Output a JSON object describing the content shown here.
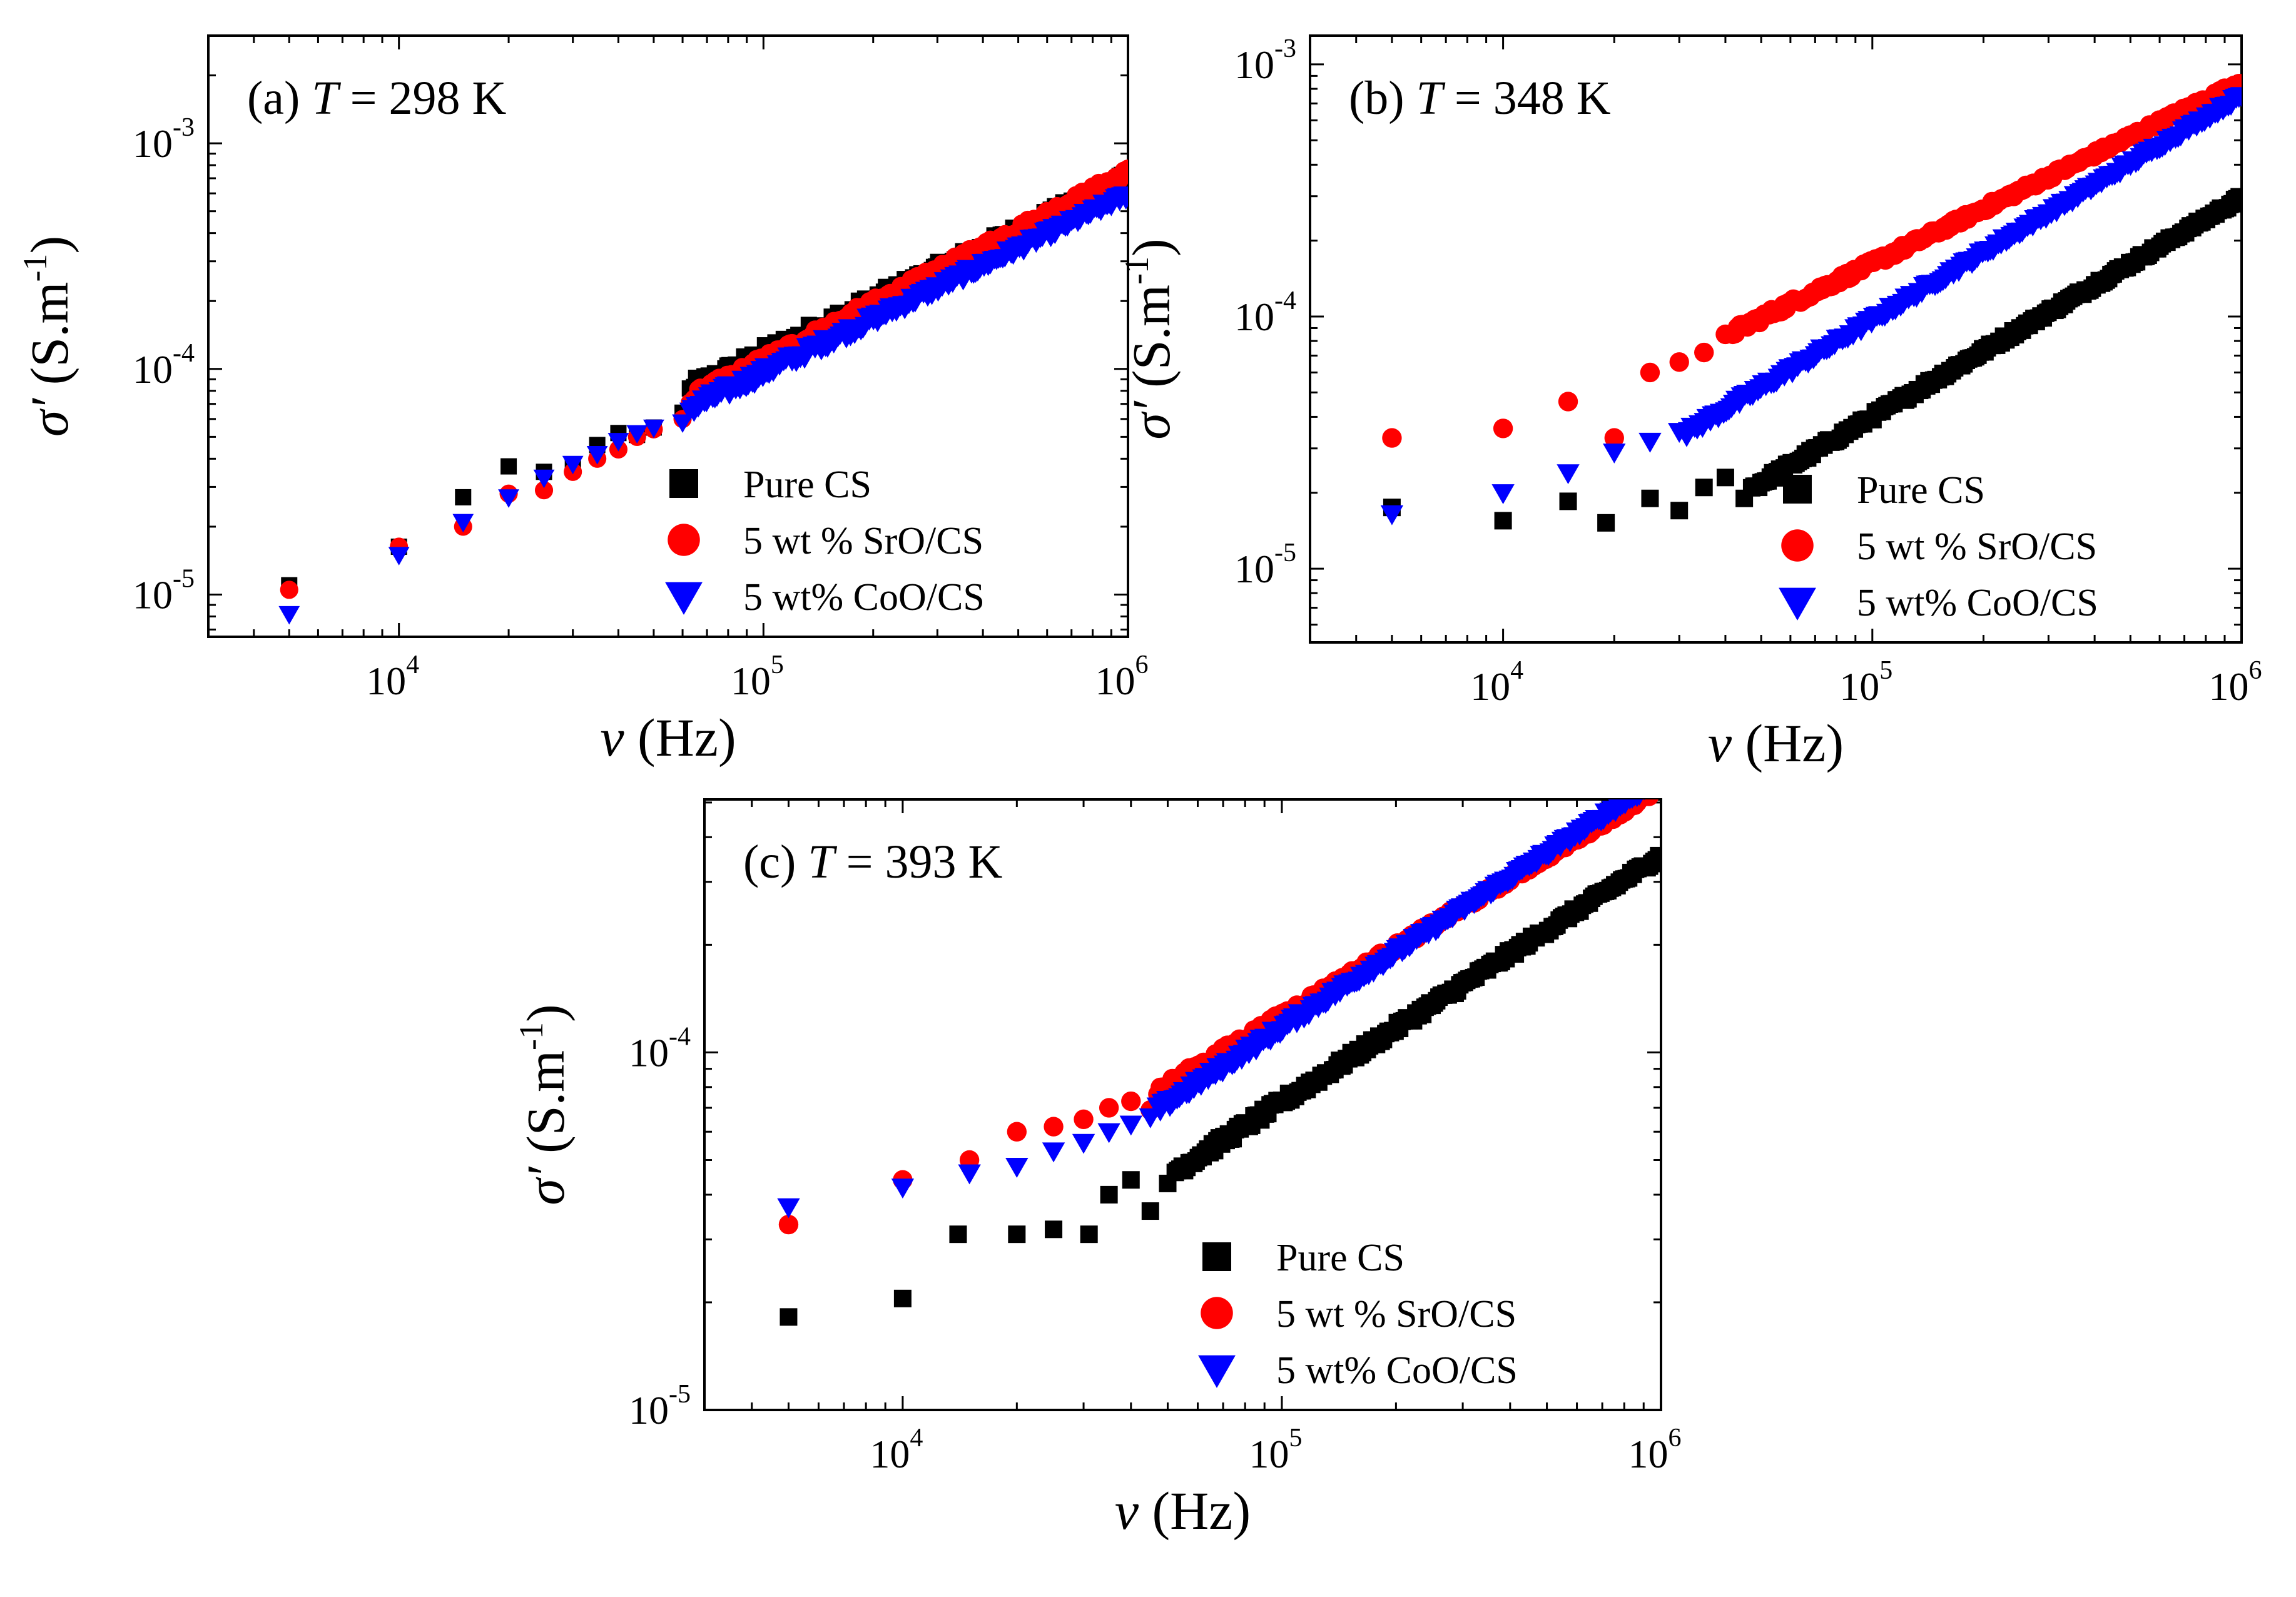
{
  "figure": {
    "legend": {
      "pure_cs": "Pure CS",
      "sro": "5 wt % SrO/CS",
      "coo": "5 wt% CoO/CS"
    },
    "colors": {
      "pure_cs": "#000000",
      "sro": "#ff0000",
      "coo": "#0000ff"
    }
  },
  "chart_data": [
    {
      "type": "scatter",
      "panel": "a",
      "title_prefix": "(a) ",
      "title_var": "T",
      "title_suffix": " = 298 K",
      "xlabel_var": "ν",
      "xlabel_unit": "(Hz)",
      "ylabel_sym": "σ′",
      "ylabel_unit_a": "(S.m",
      "ylabel_unit_exp": "-1",
      "ylabel_unit_b": ")",
      "xscale": "log",
      "yscale": "log",
      "xlim": [
        3000,
        1000000
      ],
      "ylim": [
        6.5e-06,
        0.003
      ],
      "xticks": [
        {
          "base": "10",
          "exp": "4",
          "value": 10000
        },
        {
          "base": "10",
          "exp": "5",
          "value": 100000
        },
        {
          "base": "10",
          "exp": "6",
          "value": 1000000
        }
      ],
      "yticks": [
        {
          "base": "10",
          "exp": "-5",
          "value": 1e-05
        },
        {
          "base": "10",
          "exp": "-4",
          "value": 0.0001
        },
        {
          "base": "10",
          "exp": "-3",
          "value": 0.001
        }
      ],
      "legend_position": "bottom-right",
      "series": [
        {
          "name": "Pure CS",
          "marker": "square",
          "fit": {
            "f0": 20000,
            "s0": 3.2e-05,
            "n": 0.79,
            "drift": 0.2
          },
          "points": [
            [
              5000,
              1.1e-05
            ],
            [
              10000,
              1.63e-05
            ],
            [
              15000,
              2.7e-05
            ],
            [
              20000,
              3.7e-05
            ],
            [
              25000,
              3.5e-05
            ],
            [
              30000,
              3.7e-05
            ],
            [
              35000,
              4.6e-05
            ],
            [
              40000,
              5.2e-05
            ],
            [
              45000,
              5.1e-05
            ],
            [
              50000,
              5.5e-05
            ],
            [
              60000,
              6.4e-05
            ]
          ]
        },
        {
          "name": "5 wt % SrO/CS",
          "marker": "circle",
          "fit": {
            "f0": 20000,
            "s0": 2.8e-05,
            "n": 0.84,
            "drift": 0.12
          },
          "points": [
            [
              5000,
              1.05e-05
            ],
            [
              10000,
              1.63e-05
            ],
            [
              15000,
              2e-05
            ],
            [
              20000,
              2.8e-05
            ],
            [
              25000,
              2.9e-05
            ],
            [
              30000,
              3.5e-05
            ],
            [
              35000,
              4e-05
            ],
            [
              40000,
              4.4e-05
            ],
            [
              45000,
              5e-05
            ],
            [
              50000,
              5.4e-05
            ],
            [
              60000,
              6e-05
            ]
          ]
        },
        {
          "name": "5 wt% CoO/CS",
          "marker": "triangle",
          "fit": {
            "f0": 20000,
            "s0": 2.7e-05,
            "n": 0.79,
            "drift": 0.12
          },
          "points": [
            [
              5000,
              8.2e-06
            ],
            [
              10000,
              1.5e-05
            ],
            [
              15000,
              2.1e-05
            ],
            [
              20000,
              2.7e-05
            ],
            [
              25000,
              3.3e-05
            ],
            [
              30000,
              3.8e-05
            ],
            [
              35000,
              4.2e-05
            ],
            [
              40000,
              4.8e-05
            ],
            [
              45000,
              5.2e-05
            ],
            [
              50000,
              5.5e-05
            ],
            [
              60000,
              5.8e-05
            ]
          ]
        }
      ]
    },
    {
      "type": "scatter",
      "panel": "b",
      "title_prefix": "(b) ",
      "title_var": "T",
      "title_suffix": " = 348 K",
      "xlabel_var": "ν",
      "xlabel_unit": "(Hz)",
      "ylabel_sym": "σ′",
      "ylabel_unit_a": "(S.m",
      "ylabel_unit_exp": "-1",
      "ylabel_unit_b": ")",
      "xscale": "log",
      "yscale": "log",
      "xlim": [
        3000,
        1000000
      ],
      "ylim": [
        5.1e-06,
        0.0013
      ],
      "xticks": [
        {
          "base": "10",
          "exp": "4",
          "value": 10000
        },
        {
          "base": "10",
          "exp": "5",
          "value": 100000
        },
        {
          "base": "10",
          "exp": "6",
          "value": 1000000
        }
      ],
      "yticks": [
        {
          "base": "10",
          "exp": "-5",
          "value": 1e-05
        },
        {
          "base": "10",
          "exp": "-4",
          "value": 0.0001
        },
        {
          "base": "10",
          "exp": "-3",
          "value": 0.001
        }
      ],
      "legend_position": "bottom-right",
      "series": [
        {
          "name": "Pure CS",
          "marker": "square",
          "fit": {
            "f0": 45000,
            "s0": 2e-05,
            "n": 0.87,
            "drift": 0.06
          },
          "points": [
            [
              5000,
              1.75e-05
            ],
            [
              10000,
              1.55e-05
            ],
            [
              15000,
              1.85e-05
            ],
            [
              19000,
              1.52e-05
            ],
            [
              25000,
              1.9e-05
            ],
            [
              30000,
              1.7e-05
            ],
            [
              35000,
              2.1e-05
            ],
            [
              40000,
              2.3e-05
            ],
            [
              45000,
              1.9e-05
            ]
          ]
        },
        {
          "name": "5 wt % SrO/CS",
          "marker": "circle",
          "fit": {
            "f0": 40000,
            "s0": 8.4e-05,
            "n": 0.72,
            "drift": 0.06
          },
          "points": [
            [
              5000,
              3.3e-05
            ],
            [
              10000,
              3.6e-05
            ],
            [
              15000,
              4.6e-05
            ],
            [
              20000,
              3.3e-05
            ],
            [
              25000,
              6e-05
            ],
            [
              30000,
              6.6e-05
            ],
            [
              35000,
              7.2e-05
            ],
            [
              40000,
              8.5e-05
            ]
          ]
        },
        {
          "name": "5 wt% CoO/CS",
          "marker": "triangle",
          "fit": {
            "f0": 35000,
            "s0": 3.8e-05,
            "n": 0.89,
            "drift": 0.06
          },
          "points": [
            [
              5000,
              1.65e-05
            ],
            [
              10000,
              2e-05
            ],
            [
              15000,
              2.4e-05
            ],
            [
              20000,
              2.9e-05
            ],
            [
              25000,
              3.2e-05
            ],
            [
              30000,
              3.5e-05
            ]
          ]
        }
      ]
    },
    {
      "type": "scatter",
      "panel": "c",
      "title_prefix": "(c) ",
      "title_var": "T",
      "title_suffix": " = 393 K",
      "xlabel_var": "ν",
      "xlabel_unit": "(Hz)",
      "ylabel_sym": "σ′",
      "ylabel_unit_a": "(S.m",
      "ylabel_unit_exp": "-1",
      "ylabel_unit_b": ")",
      "xscale": "log",
      "yscale": "log",
      "xlim": [
        3000,
        1000000
      ],
      "ylim": [
        1e-05,
        0.00051
      ],
      "xticks": [
        {
          "base": "10",
          "exp": "4",
          "value": 10000
        },
        {
          "base": "10",
          "exp": "5",
          "value": 100000
        },
        {
          "base": "10",
          "exp": "6",
          "value": 1000000
        }
      ],
      "yticks": [
        {
          "base": "10",
          "exp": "-5",
          "value": 1e-05
        },
        {
          "base": "10",
          "exp": "-4",
          "value": 0.0001
        }
      ],
      "legend_position": "bottom-right",
      "series": [
        {
          "name": "Pure CS",
          "marker": "square",
          "fit": {
            "f0": 50000,
            "s0": 4.5e-05,
            "n": 0.69,
            "drift": 0.06
          },
          "points": [
            [
              5000,
              1.82e-05
            ],
            [
              10000,
              2.05e-05
            ],
            [
              14000,
              3.1e-05
            ],
            [
              20000,
              3.1e-05
            ],
            [
              25000,
              3.2e-05
            ],
            [
              31000,
              3.1e-05
            ],
            [
              35000,
              4e-05
            ],
            [
              40000,
              4.4e-05
            ],
            [
              45000,
              3.6e-05
            ],
            [
              50000,
              4.3e-05
            ]
          ]
        },
        {
          "name": "5 wt % SrO/CS",
          "marker": "circle",
          "fit": {
            "f0": 50000,
            "s0": 8.1e-05,
            "n": 0.64,
            "drift": 0.05
          },
          "points": [
            [
              5000,
              3.3e-05
            ],
            [
              10000,
              4.4e-05
            ],
            [
              15000,
              5e-05
            ],
            [
              20000,
              6e-05
            ],
            [
              25000,
              6.2e-05
            ],
            [
              30000,
              6.5e-05
            ],
            [
              35000,
              7e-05
            ],
            [
              40000,
              7.3e-05
            ],
            [
              45000,
              6.9e-05
            ]
          ]
        },
        {
          "name": "5 wt% CoO/CS",
          "marker": "triangle",
          "fit": {
            "f0": 50000,
            "s0": 7.2e-05,
            "n": 0.7,
            "drift": 0.05
          },
          "points": [
            [
              5000,
              3.7e-05
            ],
            [
              10000,
              4.2e-05
            ],
            [
              15000,
              4.6e-05
            ],
            [
              20000,
              4.8e-05
            ],
            [
              25000,
              5.3e-05
            ],
            [
              30000,
              5.6e-05
            ],
            [
              35000,
              6e-05
            ],
            [
              40000,
              6.3e-05
            ],
            [
              45000,
              6.6e-05
            ]
          ]
        }
      ]
    }
  ]
}
